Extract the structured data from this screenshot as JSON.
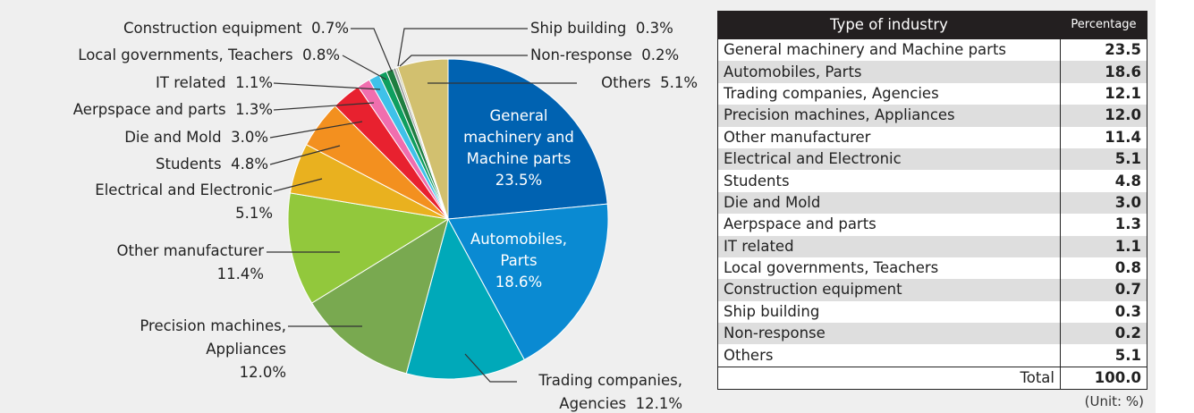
{
  "chart_data": {
    "type": "pie",
    "categories": [
      "General machinery and Machine parts",
      "Automobiles, Parts",
      "Trading companies, Agencies",
      "Precision machines, Appliances",
      "Other manufacturer",
      "Electrical and Electronic",
      "Students",
      "Die and Mold",
      "Aerpspace and parts",
      "IT related",
      "Local governments, Teachers",
      "Construction equipment",
      "Ship building",
      "Non-response",
      "Others"
    ],
    "values": [
      23.5,
      18.6,
      12.1,
      12.0,
      11.4,
      5.1,
      4.8,
      3.0,
      1.3,
      1.1,
      0.8,
      0.7,
      0.3,
      0.2,
      5.1
    ],
    "value_labels": [
      "23.5%",
      "18.6%",
      "12.1%",
      "12.0%",
      "11.4%",
      "5.1%",
      "4.8%",
      "3.0%",
      "1.3%",
      "1.1%",
      "0.8%",
      "0.7%",
      "0.3%",
      "0.2%",
      "5.1%"
    ],
    "colors": [
      "#0062b1",
      "#0a8ad2",
      "#00a9b9",
      "#79a950",
      "#92c83c",
      "#e9b11f",
      "#f3901f",
      "#e8212f",
      "#f06eae",
      "#3fc1e9",
      "#0e9f5f",
      "#1f7d40",
      "#9f9f9f",
      "#c7c4a0",
      "#d2c06f"
    ]
  },
  "table": {
    "header": [
      "Type of industry",
      "Percentage"
    ],
    "rows": [
      [
        "General machinery and Machine parts",
        "23.5"
      ],
      [
        "Automobiles, Parts",
        "18.6"
      ],
      [
        "Trading companies, Agencies",
        "12.1"
      ],
      [
        "Precision machines, Appliances",
        "12.0"
      ],
      [
        "Other manufacturer",
        "11.4"
      ],
      [
        "Electrical and Electronic",
        "5.1"
      ],
      [
        "Students",
        "4.8"
      ],
      [
        "Die and Mold",
        "3.0"
      ],
      [
        "Aerpspace and parts",
        "1.3"
      ],
      [
        "IT related",
        "1.1"
      ],
      [
        "Local governments, Teachers",
        "0.8"
      ],
      [
        "Construction equipment",
        "0.7"
      ],
      [
        "Ship building",
        "0.3"
      ],
      [
        "Non-response",
        "0.2"
      ],
      [
        "Others",
        "5.1"
      ]
    ],
    "total": [
      "Total",
      "100.0"
    ],
    "unit": "(Unit: %)"
  }
}
